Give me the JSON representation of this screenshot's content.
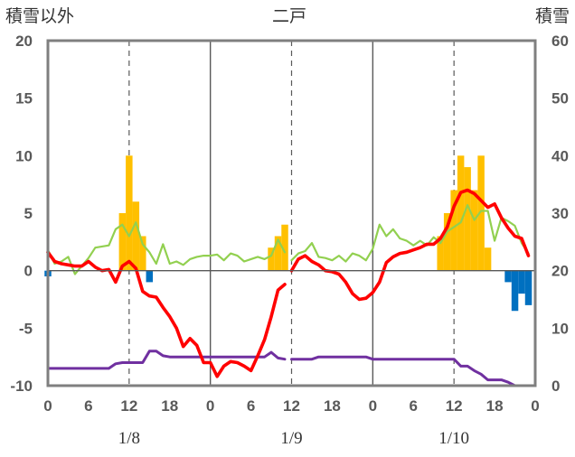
{
  "chart_data": {
    "type": "bar",
    "title": "二戸",
    "ylabel_left": "積雪以外",
    "ylabel_right": "積雪",
    "ylim_left": [
      -10,
      20
    ],
    "ylim_right": [
      0,
      60
    ],
    "y_ticks_left": [
      "20",
      "15",
      "10",
      "5",
      "0",
      "-5",
      "-10"
    ],
    "y_ticks_right": [
      "60",
      "50",
      "40",
      "30",
      "20",
      "10",
      "0"
    ],
    "x_tick_labels": [
      "0",
      "6",
      "12",
      "18",
      "0",
      "6",
      "12",
      "18",
      "0",
      "6",
      "12",
      "18",
      "0"
    ],
    "date_labels": [
      "1/8",
      "1/9",
      "1/10"
    ],
    "grid": "vertical dashed at 12h, solid at 0h",
    "colors": {
      "snowfall": "#FFC000",
      "snow_depth_change": "#0070C0",
      "temperature": "#FF0000",
      "humidity": "#92D050",
      "snow_depth": "#7030A0"
    },
    "series": [
      {
        "key": "snowfall",
        "kind": "bar",
        "axis": "left",
        "hours": [
          11,
          12,
          13,
          14,
          33,
          34,
          35,
          58,
          59,
          60,
          61,
          62,
          63,
          64,
          65
        ],
        "values": [
          5,
          10,
          6,
          3,
          2,
          3,
          4,
          3,
          5,
          7,
          10,
          9,
          7,
          10,
          2
        ]
      },
      {
        "key": "snow_depth_change",
        "kind": "bar",
        "axis": "left",
        "hours": [
          0,
          15,
          68,
          69,
          70,
          71
        ],
        "values": [
          -0.5,
          -1,
          -1,
          -3.5,
          -2,
          -3
        ]
      },
      {
        "key": "temperature",
        "kind": "line",
        "axis": "left",
        "segments": [
          {
            "hours": [
              0,
              1,
              2,
              3,
              4,
              5,
              6,
              7,
              8,
              9,
              10,
              11,
              12,
              13,
              14,
              15,
              16,
              17,
              18,
              19,
              20,
              21,
              22,
              23,
              24,
              25,
              26,
              27,
              28,
              29,
              30,
              31,
              32,
              33,
              34,
              35
            ],
            "values": [
              1.6,
              0.8,
              0.6,
              0.5,
              0.4,
              0.4,
              0.8,
              0.3,
              0.0,
              0.1,
              -1.0,
              0.4,
              0.8,
              0.2,
              -1.8,
              -2.2,
              -2.3,
              -3.2,
              -4.0,
              -5.0,
              -6.6,
              -5.9,
              -6.5,
              -8.0,
              -8.0,
              -9.2,
              -8.3,
              -7.9,
              -8.0,
              -8.3,
              -8.7,
              -7.4,
              -6.0,
              -4.0,
              -1.7,
              -1.2
            ]
          },
          {
            "hours": [
              36,
              37,
              38,
              39,
              40,
              41,
              42,
              43,
              44,
              45,
              46,
              47,
              48,
              49,
              50,
              51,
              52,
              53,
              54,
              55,
              56,
              57,
              58,
              59,
              60,
              61,
              62,
              63,
              64,
              65,
              66,
              67,
              68,
              69,
              70,
              71
            ],
            "values": [
              0.0,
              1.0,
              1.3,
              0.8,
              0.5,
              0.0,
              -0.1,
              -0.3,
              -1.0,
              -2.0,
              -2.5,
              -2.4,
              -1.9,
              -1.0,
              0.7,
              1.2,
              1.5,
              1.6,
              1.8,
              2.0,
              2.3,
              2.3,
              2.8,
              3.8,
              5.6,
              6.8,
              7.0,
              6.7,
              6.1,
              5.5,
              5.8,
              4.6,
              3.7,
              3.0,
              2.8,
              1.3
            ]
          }
        ]
      },
      {
        "key": "humidity",
        "kind": "line",
        "axis": "left",
        "segments": [
          {
            "hours": [
              0,
              1,
              2,
              3,
              4,
              5,
              6,
              7,
              8,
              9,
              10,
              11,
              12,
              13,
              14,
              15,
              16,
              17,
              18,
              19,
              20,
              21,
              22,
              23,
              24,
              25,
              26,
              27,
              28,
              29,
              30,
              31,
              32,
              33,
              34,
              35
            ],
            "values": [
              1.8,
              0.6,
              0.8,
              1.2,
              -0.3,
              0.4,
              1.1,
              2.0,
              2.1,
              2.2,
              3.6,
              4.0,
              3.0,
              4.2,
              2.3,
              1.6,
              0.6,
              2.3,
              0.6,
              0.8,
              0.5,
              1.0,
              1.2,
              1.3,
              1.3,
              1.4,
              0.9,
              1.5,
              1.3,
              0.8,
              1.0,
              1.2,
              1.0,
              1.3,
              2.7,
              1.6
            ]
          },
          {
            "hours": [
              36,
              37,
              38,
              39,
              40,
              41,
              42,
              43,
              44,
              45,
              46,
              47,
              48,
              49,
              50,
              51,
              52,
              53,
              54,
              55,
              56,
              57,
              58,
              59,
              60,
              61,
              62,
              63,
              64,
              65,
              66,
              67,
              68,
              69,
              70,
              71
            ],
            "values": [
              0.9,
              1.5,
              1.7,
              2.4,
              1.2,
              1.1,
              0.9,
              1.3,
              0.8,
              1.5,
              1.3,
              0.9,
              1.9,
              4.0,
              3.0,
              3.6,
              2.8,
              2.6,
              2.2,
              2.6,
              2.2,
              2.9,
              2.4,
              3.4,
              3.8,
              4.2,
              5.7,
              4.4,
              5.2,
              5.2,
              2.6,
              4.6,
              4.3,
              3.9,
              2.4,
              1.5
            ]
          }
        ]
      },
      {
        "key": "snow_depth",
        "kind": "line",
        "axis": "right",
        "segments": [
          {
            "hours": [
              0,
              9,
              10,
              11,
              12,
              13,
              14,
              15,
              16,
              17,
              18,
              19,
              20,
              21,
              22,
              23,
              24,
              25,
              26,
              27,
              28,
              29,
              30,
              31,
              32,
              33,
              34,
              35
            ],
            "values": [
              3.0,
              3.0,
              3.8,
              4.0,
              4.0,
              4.0,
              4.0,
              6.0,
              6.0,
              5.2,
              5.0,
              5.0,
              5.0,
              5.0,
              5.0,
              5.0,
              5.0,
              5.0,
              5.0,
              5.0,
              5.0,
              5.0,
              5.0,
              5.0,
              5.0,
              5.8,
              4.8,
              4.6
            ]
          },
          {
            "hours": [
              36,
              37,
              38,
              39,
              40,
              41,
              42,
              43,
              44,
              45,
              46,
              47,
              48,
              49,
              50,
              51,
              52,
              53,
              54,
              55,
              56,
              57,
              58,
              59,
              60,
              61,
              62,
              63,
              64,
              65,
              66,
              67,
              68,
              69,
              70,
              71
            ],
            "values": [
              4.6,
              4.6,
              4.6,
              4.6,
              5.0,
              5.0,
              5.0,
              5.0,
              5.0,
              5.0,
              5.0,
              5.0,
              4.6,
              4.6,
              4.6,
              4.6,
              4.6,
              4.6,
              4.6,
              4.6,
              4.6,
              4.6,
              4.6,
              4.6,
              4.6,
              3.4,
              3.4,
              2.6,
              2.0,
              1.0,
              1.0,
              1.0,
              0.6,
              0.0,
              0.0,
              0.0
            ]
          }
        ]
      }
    ]
  }
}
